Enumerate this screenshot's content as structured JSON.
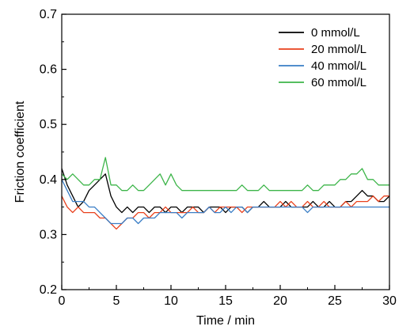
{
  "chart_data": {
    "type": "line",
    "title": "",
    "xlabel": "Time / min",
    "ylabel": "Friction coefficient",
    "xlim": [
      0,
      30
    ],
    "ylim": [
      0.2,
      0.7
    ],
    "xticks": [
      0,
      5,
      10,
      15,
      20,
      25,
      30
    ],
    "xtick_labels": [
      "0",
      "5",
      "10",
      "15",
      "20",
      "25",
      "30"
    ],
    "yticks": [
      0.2,
      0.3,
      0.4,
      0.5,
      0.6,
      0.7
    ],
    "ytick_labels": [
      "0.2",
      "0.3",
      "0.4",
      "0.5",
      "0.6",
      "0.7"
    ],
    "grid": false,
    "legend_position": "top-right",
    "series": [
      {
        "name": "0 mmol/L",
        "color": "#000000",
        "x": [
          0,
          0.5,
          1,
          1.5,
          2,
          2.5,
          3,
          3.5,
          4,
          4.5,
          5,
          5.5,
          6,
          6.5,
          7,
          7.5,
          8,
          8.5,
          9,
          9.5,
          10,
          10.5,
          11,
          11.5,
          12,
          12.5,
          13,
          13.5,
          14,
          14.5,
          15,
          15.5,
          16,
          16.5,
          17,
          17.5,
          18,
          18.5,
          19,
          19.5,
          20,
          20.5,
          21,
          21.5,
          22,
          22.5,
          23,
          23.5,
          24,
          24.5,
          25,
          25.5,
          26,
          26.5,
          27,
          27.5,
          28,
          28.5,
          29,
          29.5,
          30
        ],
        "y": [
          0.42,
          0.39,
          0.37,
          0.35,
          0.36,
          0.38,
          0.39,
          0.4,
          0.41,
          0.37,
          0.35,
          0.34,
          0.35,
          0.34,
          0.35,
          0.35,
          0.34,
          0.35,
          0.35,
          0.34,
          0.35,
          0.35,
          0.34,
          0.35,
          0.35,
          0.35,
          0.34,
          0.35,
          0.35,
          0.35,
          0.34,
          0.35,
          0.35,
          0.35,
          0.34,
          0.35,
          0.35,
          0.36,
          0.35,
          0.35,
          0.35,
          0.36,
          0.35,
          0.35,
          0.35,
          0.35,
          0.36,
          0.35,
          0.35,
          0.36,
          0.35,
          0.35,
          0.36,
          0.36,
          0.37,
          0.38,
          0.37,
          0.37,
          0.36,
          0.36,
          0.37
        ]
      },
      {
        "name": "20 mmol/L",
        "color": "#e8401c",
        "x": [
          0,
          0.5,
          1,
          1.5,
          2,
          2.5,
          3,
          3.5,
          4,
          4.5,
          5,
          5.5,
          6,
          6.5,
          7,
          7.5,
          8,
          8.5,
          9,
          9.5,
          10,
          10.5,
          11,
          11.5,
          12,
          12.5,
          13,
          13.5,
          14,
          14.5,
          15,
          15.5,
          16,
          16.5,
          17,
          17.5,
          18,
          18.5,
          19,
          19.5,
          20,
          20.5,
          21,
          21.5,
          22,
          22.5,
          23,
          23.5,
          24,
          24.5,
          25,
          25.5,
          26,
          26.5,
          27,
          27.5,
          28,
          28.5,
          29,
          29.5,
          30
        ],
        "y": [
          0.37,
          0.35,
          0.34,
          0.35,
          0.34,
          0.34,
          0.34,
          0.33,
          0.33,
          0.32,
          0.31,
          0.32,
          0.33,
          0.33,
          0.34,
          0.34,
          0.33,
          0.34,
          0.34,
          0.35,
          0.34,
          0.34,
          0.34,
          0.34,
          0.35,
          0.34,
          0.34,
          0.35,
          0.34,
          0.35,
          0.35,
          0.35,
          0.35,
          0.34,
          0.35,
          0.35,
          0.35,
          0.35,
          0.35,
          0.35,
          0.36,
          0.35,
          0.36,
          0.35,
          0.35,
          0.36,
          0.35,
          0.35,
          0.36,
          0.35,
          0.35,
          0.35,
          0.36,
          0.35,
          0.36,
          0.36,
          0.36,
          0.37,
          0.36,
          0.37,
          0.37
        ]
      },
      {
        "name": "40 mmol/L",
        "color": "#3a7ec6",
        "x": [
          0,
          0.5,
          1,
          1.5,
          2,
          2.5,
          3,
          3.5,
          4,
          4.5,
          5,
          5.5,
          6,
          6.5,
          7,
          7.5,
          8,
          8.5,
          9,
          9.5,
          10,
          10.5,
          11,
          11.5,
          12,
          12.5,
          13,
          13.5,
          14,
          14.5,
          15,
          15.5,
          16,
          16.5,
          17,
          17.5,
          18,
          18.5,
          19,
          19.5,
          20,
          20.5,
          21,
          21.5,
          22,
          22.5,
          23,
          23.5,
          24,
          24.5,
          25,
          25.5,
          26,
          26.5,
          27,
          27.5,
          28,
          28.5,
          29,
          29.5,
          30
        ],
        "y": [
          0.4,
          0.38,
          0.36,
          0.36,
          0.36,
          0.35,
          0.35,
          0.34,
          0.33,
          0.32,
          0.32,
          0.32,
          0.33,
          0.33,
          0.32,
          0.33,
          0.33,
          0.33,
          0.34,
          0.34,
          0.34,
          0.34,
          0.33,
          0.34,
          0.34,
          0.34,
          0.34,
          0.35,
          0.34,
          0.34,
          0.35,
          0.34,
          0.35,
          0.35,
          0.34,
          0.35,
          0.35,
          0.35,
          0.35,
          0.35,
          0.35,
          0.35,
          0.35,
          0.35,
          0.35,
          0.34,
          0.35,
          0.35,
          0.35,
          0.35,
          0.35,
          0.35,
          0.35,
          0.35,
          0.35,
          0.35,
          0.35,
          0.35,
          0.35,
          0.35,
          0.35
        ]
      },
      {
        "name": "60 mmol/L",
        "color": "#3db54a",
        "x": [
          0,
          0.5,
          1,
          1.5,
          2,
          2.5,
          3,
          3.5,
          4,
          4.5,
          5,
          5.5,
          6,
          6.5,
          7,
          7.5,
          8,
          8.5,
          9,
          9.5,
          10,
          10.5,
          11,
          11.5,
          12,
          12.5,
          13,
          13.5,
          14,
          14.5,
          15,
          15.5,
          16,
          16.5,
          17,
          17.5,
          18,
          18.5,
          19,
          19.5,
          20,
          20.5,
          21,
          21.5,
          22,
          22.5,
          23,
          23.5,
          24,
          24.5,
          25,
          25.5,
          26,
          26.5,
          27,
          27.5,
          28,
          28.5,
          29,
          29.5,
          30
        ],
        "y": [
          0.41,
          0.4,
          0.41,
          0.4,
          0.39,
          0.39,
          0.4,
          0.4,
          0.44,
          0.39,
          0.39,
          0.38,
          0.38,
          0.39,
          0.38,
          0.38,
          0.39,
          0.4,
          0.41,
          0.39,
          0.41,
          0.39,
          0.38,
          0.38,
          0.38,
          0.38,
          0.38,
          0.38,
          0.38,
          0.38,
          0.38,
          0.38,
          0.38,
          0.39,
          0.38,
          0.38,
          0.38,
          0.39,
          0.38,
          0.38,
          0.38,
          0.38,
          0.38,
          0.38,
          0.38,
          0.39,
          0.38,
          0.38,
          0.39,
          0.39,
          0.39,
          0.4,
          0.4,
          0.41,
          0.41,
          0.42,
          0.4,
          0.4,
          0.39,
          0.39,
          0.39
        ]
      }
    ]
  }
}
